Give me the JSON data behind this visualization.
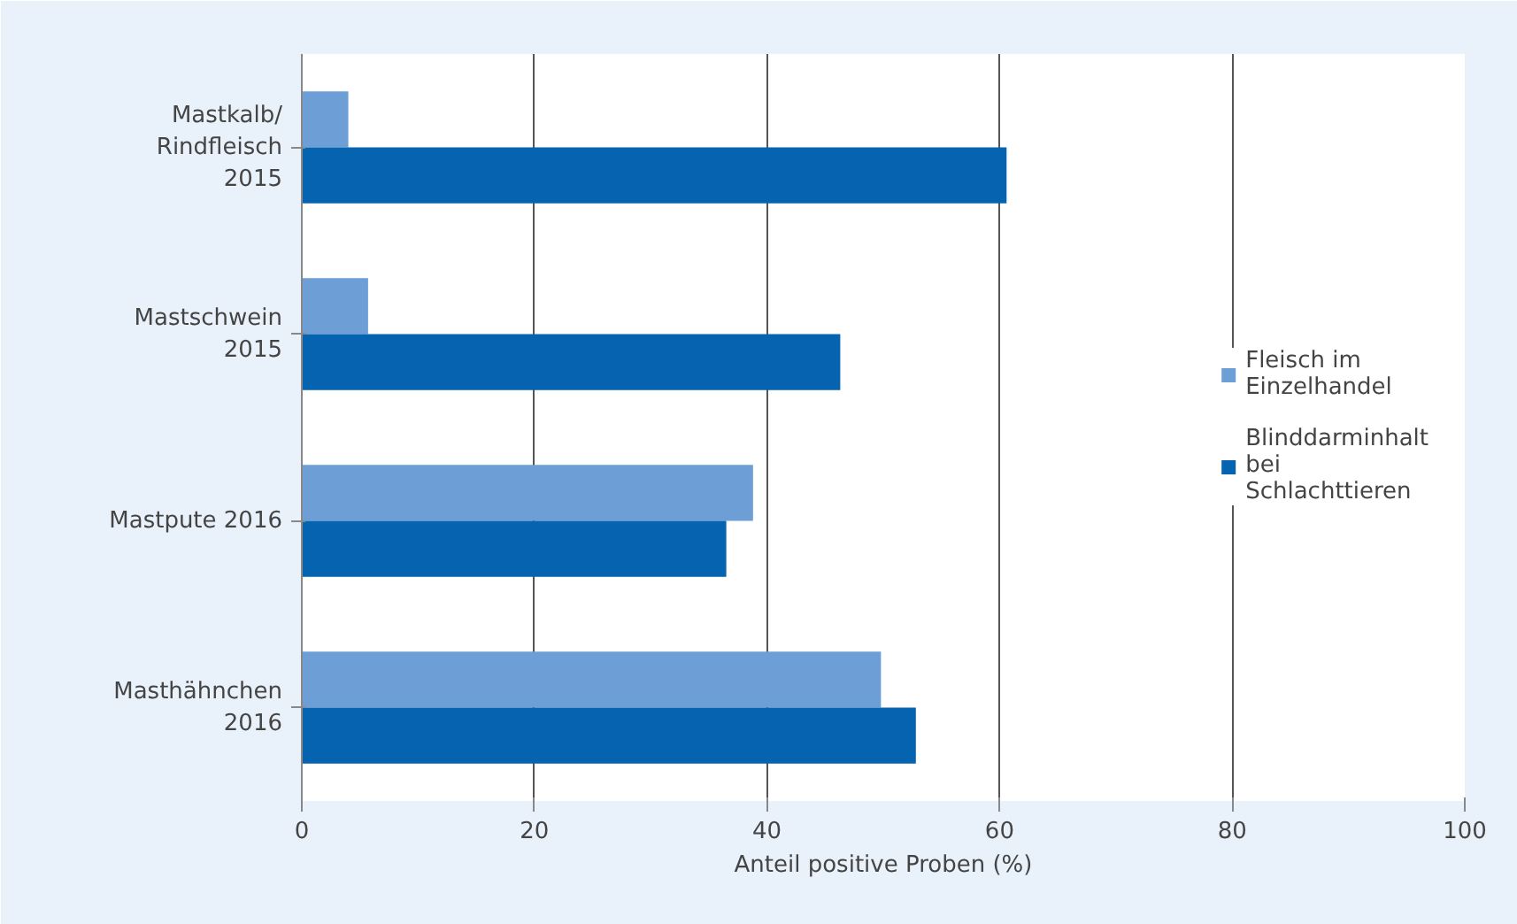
{
  "chart_data": {
    "type": "bar",
    "orientation": "horizontal",
    "categories": [
      "Mastkalb/\nRindfleisch\n2015",
      "Mastschwein\n2015",
      "Mastpute 2016",
      "Masthähnchen\n2016"
    ],
    "series": [
      {
        "name": "Fleisch im Einzelhandel",
        "color": "#6d9fd6",
        "values": [
          4.0,
          5.7,
          38.8,
          49.8
        ]
      },
      {
        "name": "Blinddarminhalt bei Schlachttieren",
        "color": "#0563b0",
        "values": [
          60.6,
          46.3,
          36.5,
          52.8
        ]
      }
    ],
    "xlabel": "Anteil positive Proben (%)",
    "xlim": [
      0,
      100
    ],
    "xticks": [
      0,
      20,
      40,
      60,
      80,
      100
    ],
    "grid": "x",
    "legend": "right"
  }
}
